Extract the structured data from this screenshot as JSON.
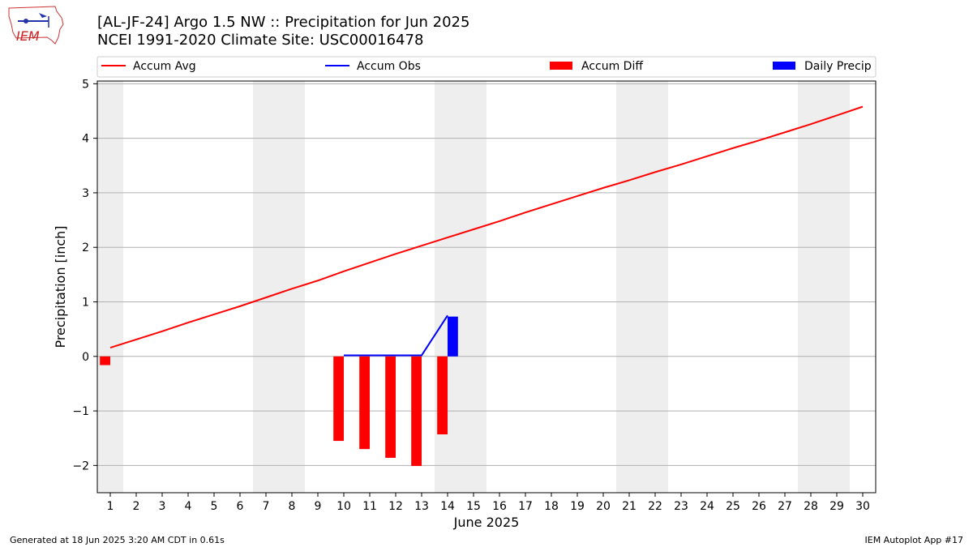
{
  "header": {
    "title_line1": "[AL-JF-24] Argo 1.5 NW :: Precipitation for Jun 2025",
    "title_line2": "NCEI 1991-2020 Climate Site: USC00016478",
    "logo_text": "IEM"
  },
  "footer": {
    "generated": "Generated at 18 Jun 2025 3:20 AM CDT in 0.61s",
    "app": "IEM Autoplot App #17"
  },
  "colors": {
    "avg": "#ff0000",
    "obs": "#0000ff",
    "diff": "#ff0000",
    "daily": "#0000ff",
    "weekend": "#eeeeee",
    "grid": "#b0b0b0"
  },
  "chart_data": {
    "type": "bar",
    "title": "[AL-JF-24] Argo 1.5 NW :: Precipitation for Jun 2025",
    "subtitle": "NCEI 1991-2020 Climate Site: USC00016478",
    "xlabel": "June 2025",
    "ylabel": "Precipitation [inch]",
    "xlim": [
      0.5,
      30.5
    ],
    "ylim": [
      -2.5,
      5.05
    ],
    "yticks": [
      -2,
      -1,
      0,
      1,
      2,
      3,
      4,
      5
    ],
    "ytick_labels": [
      "−2",
      "−1",
      "0",
      "1",
      "2",
      "3",
      "4",
      "5"
    ],
    "x_tick_labels": [
      "1",
      "2",
      "3",
      "4",
      "5",
      "6",
      "7",
      "8",
      "9",
      "10",
      "11",
      "12",
      "13",
      "14",
      "15",
      "16",
      "17",
      "18",
      "19",
      "20",
      "21",
      "22",
      "23",
      "24",
      "25",
      "26",
      "27",
      "28",
      "29",
      "30"
    ],
    "grid": "horizontal",
    "legend_placement": "top",
    "weekend_bands": [
      [
        0.5,
        1.5
      ],
      [
        6.5,
        8.5
      ],
      [
        13.5,
        15.5
      ],
      [
        20.5,
        22.5
      ],
      [
        27.5,
        29.5
      ]
    ],
    "series": [
      {
        "name": "Accum Avg",
        "kind": "line",
        "x": [
          1,
          2,
          3,
          4,
          5,
          6,
          7,
          8,
          9,
          10,
          11,
          12,
          13,
          14,
          15,
          16,
          17,
          18,
          19,
          20,
          21,
          22,
          23,
          24,
          25,
          26,
          27,
          28,
          29,
          30
        ],
        "values": [
          0.16,
          0.31,
          0.46,
          0.62,
          0.77,
          0.92,
          1.08,
          1.24,
          1.39,
          1.56,
          1.72,
          1.88,
          2.03,
          2.18,
          2.33,
          2.48,
          2.64,
          2.79,
          2.94,
          3.09,
          3.23,
          3.38,
          3.52,
          3.67,
          3.82,
          3.96,
          4.11,
          4.26,
          4.42,
          4.58
        ]
      },
      {
        "name": "Accum Obs",
        "kind": "line",
        "x": [
          10,
          11,
          12,
          13,
          14
        ],
        "values": [
          0.02,
          0.02,
          0.02,
          0.02,
          0.75
        ]
      },
      {
        "name": "Accum Diff",
        "kind": "bar",
        "x": [
          1,
          10,
          11,
          12,
          13,
          14
        ],
        "values": [
          -0.16,
          -1.55,
          -1.7,
          -1.86,
          -2.01,
          -1.43
        ]
      },
      {
        "name": "Daily Precip",
        "kind": "bar",
        "x": [
          14
        ],
        "values": [
          0.73
        ]
      }
    ]
  }
}
